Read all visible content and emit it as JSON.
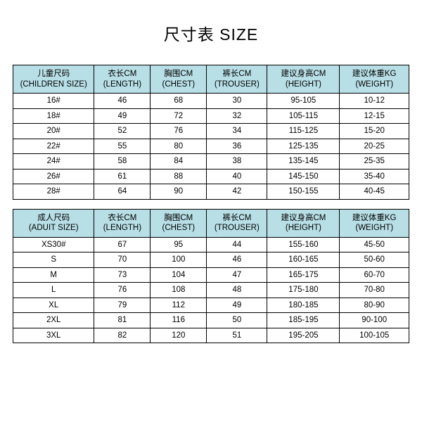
{
  "title": "尺寸表 SIZE",
  "colors": {
    "header_bg": "#b8dfe6",
    "border": "#000000",
    "text": "#000000",
    "background": "#ffffff"
  },
  "columns": {
    "children_size": {
      "cn": "儿童尺码",
      "en": "(CHILDREN SIZE)"
    },
    "adult_size": {
      "cn": "成人尺码",
      "en": "(ADUIT SIZE)"
    },
    "length": {
      "cn": "衣长CM",
      "en": "(LENGTH)"
    },
    "chest": {
      "cn": "胸围CM",
      "en": "(CHEST)"
    },
    "trouser": {
      "cn": "裤长CM",
      "en": "(TROUSER)"
    },
    "height": {
      "cn": "建议身高CM",
      "en": "(HEIGHT)"
    },
    "weight": {
      "cn": "建议体重KG",
      "en": "(WEIGHT)"
    }
  },
  "tables": {
    "children": {
      "rows": [
        {
          "size": "16#",
          "length": "46",
          "chest": "68",
          "trouser": "30",
          "height": "95-105",
          "weight": "10-12"
        },
        {
          "size": "18#",
          "length": "49",
          "chest": "72",
          "trouser": "32",
          "height": "105-115",
          "weight": "12-15"
        },
        {
          "size": "20#",
          "length": "52",
          "chest": "76",
          "trouser": "34",
          "height": "115-125",
          "weight": "15-20"
        },
        {
          "size": "22#",
          "length": "55",
          "chest": "80",
          "trouser": "36",
          "height": "125-135",
          "weight": "20-25"
        },
        {
          "size": "24#",
          "length": "58",
          "chest": "84",
          "trouser": "38",
          "height": "135-145",
          "weight": "25-35"
        },
        {
          "size": "26#",
          "length": "61",
          "chest": "88",
          "trouser": "40",
          "height": "145-150",
          "weight": "35-40"
        },
        {
          "size": "28#",
          "length": "64",
          "chest": "90",
          "trouser": "42",
          "height": "150-155",
          "weight": "40-45"
        }
      ]
    },
    "adult": {
      "rows": [
        {
          "size": "XS30#",
          "length": "67",
          "chest": "95",
          "trouser": "44",
          "height": "155-160",
          "weight": "45-50"
        },
        {
          "size": "S",
          "length": "70",
          "chest": "100",
          "trouser": "46",
          "height": "160-165",
          "weight": "50-60"
        },
        {
          "size": "M",
          "length": "73",
          "chest": "104",
          "trouser": "47",
          "height": "165-175",
          "weight": "60-70"
        },
        {
          "size": "L",
          "length": "76",
          "chest": "108",
          "trouser": "48",
          "height": "175-180",
          "weight": "70-80"
        },
        {
          "size": "XL",
          "length": "79",
          "chest": "112",
          "trouser": "49",
          "height": "180-185",
          "weight": "80-90"
        },
        {
          "size": "2XL",
          "length": "81",
          "chest": "116",
          "trouser": "50",
          "height": "185-195",
          "weight": "90-100"
        },
        {
          "size": "3XL",
          "length": "82",
          "chest": "120",
          "trouser": "51",
          "height": "195-205",
          "weight": "100-105"
        }
      ]
    }
  }
}
